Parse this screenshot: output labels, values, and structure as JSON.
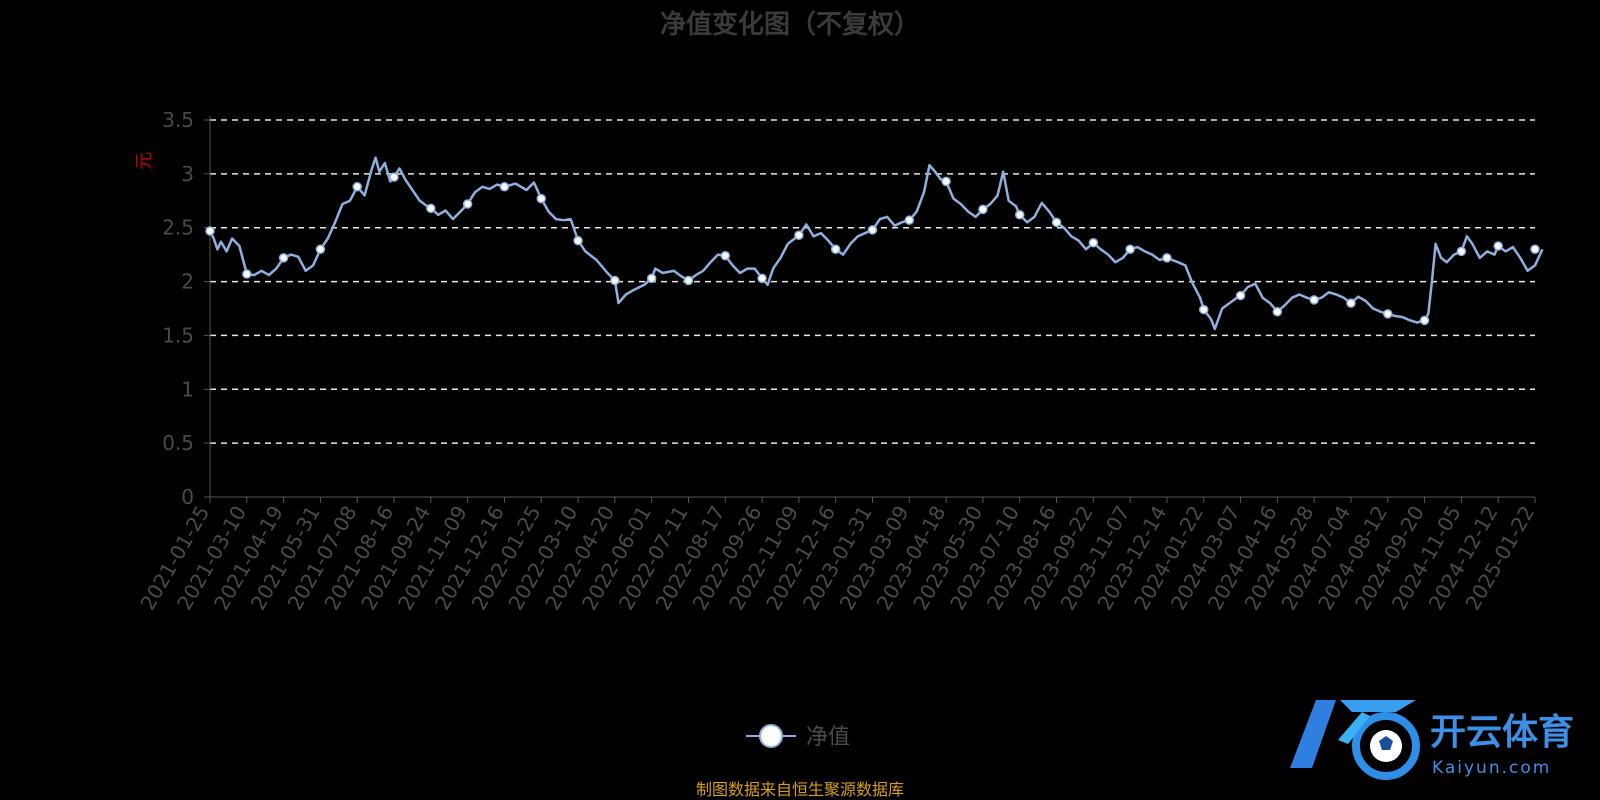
{
  "chart_data": {
    "type": "line",
    "title": "净值变化图（不复权）",
    "ylabel": "元",
    "xlabel": "",
    "ylim": [
      0,
      3.5
    ],
    "yticks": [
      "0",
      "0.5",
      "1",
      "1.5",
      "2",
      "2.5",
      "3",
      "3.5"
    ],
    "grid": true,
    "legend_position": "bottom-center",
    "series_color": "#8fb0dc",
    "categories": [
      "2021-01-25",
      "2021-03-10",
      "2021-04-19",
      "2021-05-31",
      "2021-07-08",
      "2021-08-16",
      "2021-09-24",
      "2021-11-09",
      "2021-12-16",
      "2022-01-25",
      "2022-03-10",
      "2022-04-20",
      "2022-06-01",
      "2022-07-11",
      "2022-08-17",
      "2022-09-26",
      "2022-11-09",
      "2022-12-16",
      "2023-01-31",
      "2023-03-09",
      "2023-04-18",
      "2023-05-30",
      "2023-07-10",
      "2023-08-16",
      "2023-09-22",
      "2023-11-07",
      "2023-12-14",
      "2024-01-22",
      "2024-03-07",
      "2024-04-16",
      "2024-05-28",
      "2024-07-04",
      "2024-08-12",
      "2024-09-20",
      "2024-11-05",
      "2024-12-12",
      "2025-01-22"
    ],
    "series": [
      {
        "name": "净值",
        "points": [
          [
            0,
            2.47
          ],
          [
            0.1,
            2.4
          ],
          [
            0.2,
            2.3
          ],
          [
            0.3,
            2.37
          ],
          [
            0.45,
            2.28
          ],
          [
            0.6,
            2.4
          ],
          [
            0.8,
            2.33
          ],
          [
            0.9,
            2.2
          ],
          [
            1.0,
            2.07
          ],
          [
            1.2,
            2.06
          ],
          [
            1.4,
            2.1
          ],
          [
            1.6,
            2.06
          ],
          [
            1.8,
            2.12
          ],
          [
            2.0,
            2.22
          ],
          [
            2.2,
            2.25
          ],
          [
            2.4,
            2.23
          ],
          [
            2.6,
            2.1
          ],
          [
            2.8,
            2.15
          ],
          [
            3.0,
            2.3
          ],
          [
            3.2,
            2.4
          ],
          [
            3.4,
            2.55
          ],
          [
            3.6,
            2.72
          ],
          [
            3.8,
            2.75
          ],
          [
            4.0,
            2.88
          ],
          [
            4.2,
            2.8
          ],
          [
            4.4,
            3.05
          ],
          [
            4.5,
            3.15
          ],
          [
            4.6,
            3.02
          ],
          [
            4.75,
            3.1
          ],
          [
            4.9,
            2.93
          ],
          [
            5.0,
            2.97
          ],
          [
            5.15,
            3.05
          ],
          [
            5.3,
            2.95
          ],
          [
            5.5,
            2.85
          ],
          [
            5.7,
            2.75
          ],
          [
            5.9,
            2.7
          ],
          [
            6.0,
            2.68
          ],
          [
            6.2,
            2.62
          ],
          [
            6.4,
            2.66
          ],
          [
            6.6,
            2.58
          ],
          [
            6.8,
            2.65
          ],
          [
            7.0,
            2.72
          ],
          [
            7.2,
            2.83
          ],
          [
            7.4,
            2.88
          ],
          [
            7.6,
            2.86
          ],
          [
            7.8,
            2.9
          ],
          [
            8.0,
            2.88
          ],
          [
            8.3,
            2.91
          ],
          [
            8.6,
            2.85
          ],
          [
            8.8,
            2.92
          ],
          [
            9.0,
            2.77
          ],
          [
            9.2,
            2.65
          ],
          [
            9.4,
            2.58
          ],
          [
            9.6,
            2.57
          ],
          [
            9.8,
            2.58
          ],
          [
            10.0,
            2.38
          ],
          [
            10.2,
            2.28
          ],
          [
            10.5,
            2.2
          ],
          [
            10.8,
            2.08
          ],
          [
            11.0,
            2.01
          ],
          [
            11.1,
            1.8
          ],
          [
            11.3,
            1.88
          ],
          [
            11.5,
            1.92
          ],
          [
            11.8,
            1.97
          ],
          [
            12.0,
            2.03
          ],
          [
            12.1,
            2.12
          ],
          [
            12.3,
            2.08
          ],
          [
            12.6,
            2.1
          ],
          [
            12.8,
            2.05
          ],
          [
            13.0,
            2.01
          ],
          [
            13.2,
            2.06
          ],
          [
            13.4,
            2.1
          ],
          [
            13.6,
            2.18
          ],
          [
            13.8,
            2.25
          ],
          [
            14.0,
            2.24
          ],
          [
            14.2,
            2.15
          ],
          [
            14.4,
            2.08
          ],
          [
            14.6,
            2.12
          ],
          [
            14.8,
            2.12
          ],
          [
            15.0,
            2.03
          ],
          [
            15.15,
            1.97
          ],
          [
            15.3,
            2.12
          ],
          [
            15.5,
            2.22
          ],
          [
            15.7,
            2.35
          ],
          [
            16.0,
            2.43
          ],
          [
            16.2,
            2.53
          ],
          [
            16.4,
            2.42
          ],
          [
            16.6,
            2.45
          ],
          [
            16.8,
            2.38
          ],
          [
            17.0,
            2.3
          ],
          [
            17.2,
            2.25
          ],
          [
            17.4,
            2.35
          ],
          [
            17.6,
            2.42
          ],
          [
            18.0,
            2.48
          ],
          [
            18.2,
            2.58
          ],
          [
            18.4,
            2.6
          ],
          [
            18.6,
            2.52
          ],
          [
            18.8,
            2.55
          ],
          [
            19.0,
            2.57
          ],
          [
            19.2,
            2.65
          ],
          [
            19.4,
            2.83
          ],
          [
            19.55,
            3.08
          ],
          [
            19.7,
            3.02
          ],
          [
            19.85,
            2.95
          ],
          [
            20.0,
            2.93
          ],
          [
            20.2,
            2.77
          ],
          [
            20.4,
            2.72
          ],
          [
            20.6,
            2.65
          ],
          [
            20.8,
            2.6
          ],
          [
            21.0,
            2.67
          ],
          [
            21.2,
            2.72
          ],
          [
            21.4,
            2.8
          ],
          [
            21.55,
            3.02
          ],
          [
            21.7,
            2.75
          ],
          [
            21.9,
            2.7
          ],
          [
            22.0,
            2.62
          ],
          [
            22.2,
            2.55
          ],
          [
            22.4,
            2.6
          ],
          [
            22.6,
            2.73
          ],
          [
            22.8,
            2.65
          ],
          [
            23.0,
            2.55
          ],
          [
            23.2,
            2.5
          ],
          [
            23.4,
            2.42
          ],
          [
            23.6,
            2.38
          ],
          [
            23.8,
            2.3
          ],
          [
            24.0,
            2.36
          ],
          [
            24.2,
            2.3
          ],
          [
            24.4,
            2.25
          ],
          [
            24.6,
            2.18
          ],
          [
            24.8,
            2.22
          ],
          [
            25.0,
            2.3
          ],
          [
            25.2,
            2.32
          ],
          [
            25.4,
            2.28
          ],
          [
            25.6,
            2.25
          ],
          [
            25.8,
            2.2
          ],
          [
            26.0,
            2.22
          ],
          [
            26.3,
            2.18
          ],
          [
            26.5,
            2.15
          ],
          [
            26.7,
            1.98
          ],
          [
            26.9,
            1.85
          ],
          [
            27.0,
            1.74
          ],
          [
            27.2,
            1.65
          ],
          [
            27.3,
            1.56
          ],
          [
            27.5,
            1.75
          ],
          [
            27.7,
            1.8
          ],
          [
            27.9,
            1.85
          ],
          [
            28.0,
            1.87
          ],
          [
            28.2,
            1.95
          ],
          [
            28.4,
            1.98
          ],
          [
            28.6,
            1.85
          ],
          [
            28.8,
            1.8
          ],
          [
            29.0,
            1.72
          ],
          [
            29.2,
            1.78
          ],
          [
            29.4,
            1.85
          ],
          [
            29.6,
            1.88
          ],
          [
            29.8,
            1.85
          ],
          [
            30.0,
            1.83
          ],
          [
            30.2,
            1.85
          ],
          [
            30.4,
            1.9
          ],
          [
            30.6,
            1.88
          ],
          [
            30.8,
            1.85
          ],
          [
            31.0,
            1.8
          ],
          [
            31.2,
            1.86
          ],
          [
            31.4,
            1.82
          ],
          [
            31.6,
            1.75
          ],
          [
            31.8,
            1.72
          ],
          [
            32.0,
            1.7
          ],
          [
            32.2,
            1.68
          ],
          [
            32.4,
            1.67
          ],
          [
            32.6,
            1.64
          ],
          [
            32.8,
            1.62
          ],
          [
            33.0,
            1.64
          ],
          [
            33.1,
            1.7
          ],
          [
            33.2,
            2.0
          ],
          [
            33.3,
            2.35
          ],
          [
            33.45,
            2.22
          ],
          [
            33.6,
            2.18
          ],
          [
            33.8,
            2.25
          ],
          [
            34.0,
            2.28
          ],
          [
            34.15,
            2.42
          ],
          [
            34.3,
            2.35
          ],
          [
            34.5,
            2.22
          ],
          [
            34.7,
            2.28
          ],
          [
            34.9,
            2.25
          ],
          [
            35.0,
            2.33
          ],
          [
            35.2,
            2.28
          ],
          [
            35.4,
            2.32
          ],
          [
            35.6,
            2.22
          ],
          [
            35.8,
            2.1
          ],
          [
            36.0,
            2.15
          ],
          [
            36.2,
            2.3
          ]
        ],
        "markers": [
          [
            0,
            2.47
          ],
          [
            1,
            2.07
          ],
          [
            2,
            2.22
          ],
          [
            3,
            2.3
          ],
          [
            4,
            2.88
          ],
          [
            5,
            2.97
          ],
          [
            6,
            2.68
          ],
          [
            7,
            2.72
          ],
          [
            8,
            2.88
          ],
          [
            9,
            2.77
          ],
          [
            10,
            2.38
          ],
          [
            11,
            2.01
          ],
          [
            12,
            2.03
          ],
          [
            13,
            2.01
          ],
          [
            14,
            2.24
          ],
          [
            15,
            2.03
          ],
          [
            16,
            2.43
          ],
          [
            17,
            2.3
          ],
          [
            18,
            2.48
          ],
          [
            19,
            2.57
          ],
          [
            20,
            2.93
          ],
          [
            21,
            2.67
          ],
          [
            22,
            2.62
          ],
          [
            23,
            2.55
          ],
          [
            24,
            2.36
          ],
          [
            25,
            2.3
          ],
          [
            26,
            2.22
          ],
          [
            27,
            1.74
          ],
          [
            28,
            1.87
          ],
          [
            29,
            1.72
          ],
          [
            30,
            1.83
          ],
          [
            31,
            1.8
          ],
          [
            32,
            1.7
          ],
          [
            33,
            1.64
          ],
          [
            34,
            2.28
          ],
          [
            35,
            2.33
          ],
          [
            36,
            2.3
          ]
        ]
      }
    ],
    "source_note": "制图数据来自恒生聚源数据库"
  },
  "watermark": {
    "cn": "开云体育",
    "en": "Kaiyun.com"
  }
}
